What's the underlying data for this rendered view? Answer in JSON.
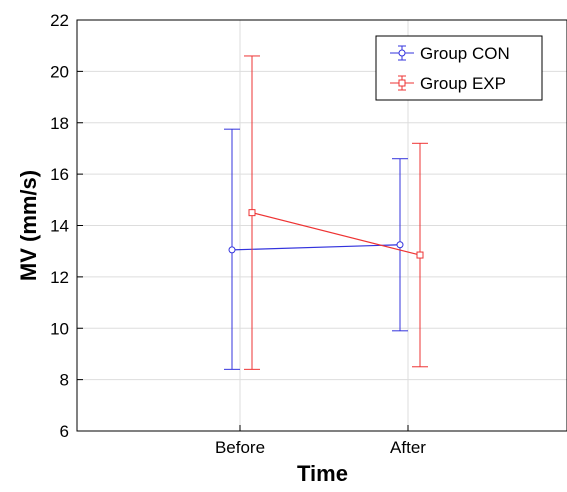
{
  "chart_data": {
    "type": "line",
    "xlabel": "Time",
    "ylabel": "MV (mm/s)",
    "categories": [
      "Before",
      "After"
    ],
    "ylim": [
      6,
      22
    ],
    "yticks": [
      6,
      8,
      10,
      12,
      14,
      16,
      18,
      20,
      22
    ],
    "grid": true,
    "legend_position": "top-right",
    "series": [
      {
        "name": "Group CON",
        "color": "#3333dd",
        "marker": "circle",
        "values": [
          13.05,
          13.25
        ],
        "error_low": [
          8.4,
          9.9
        ],
        "error_high": [
          17.75,
          16.6
        ]
      },
      {
        "name": "Group EXP",
        "color": "#ee3333",
        "marker": "square",
        "values": [
          14.5,
          12.85
        ],
        "error_low": [
          8.4,
          8.5
        ],
        "error_high": [
          20.6,
          17.2
        ]
      }
    ]
  }
}
